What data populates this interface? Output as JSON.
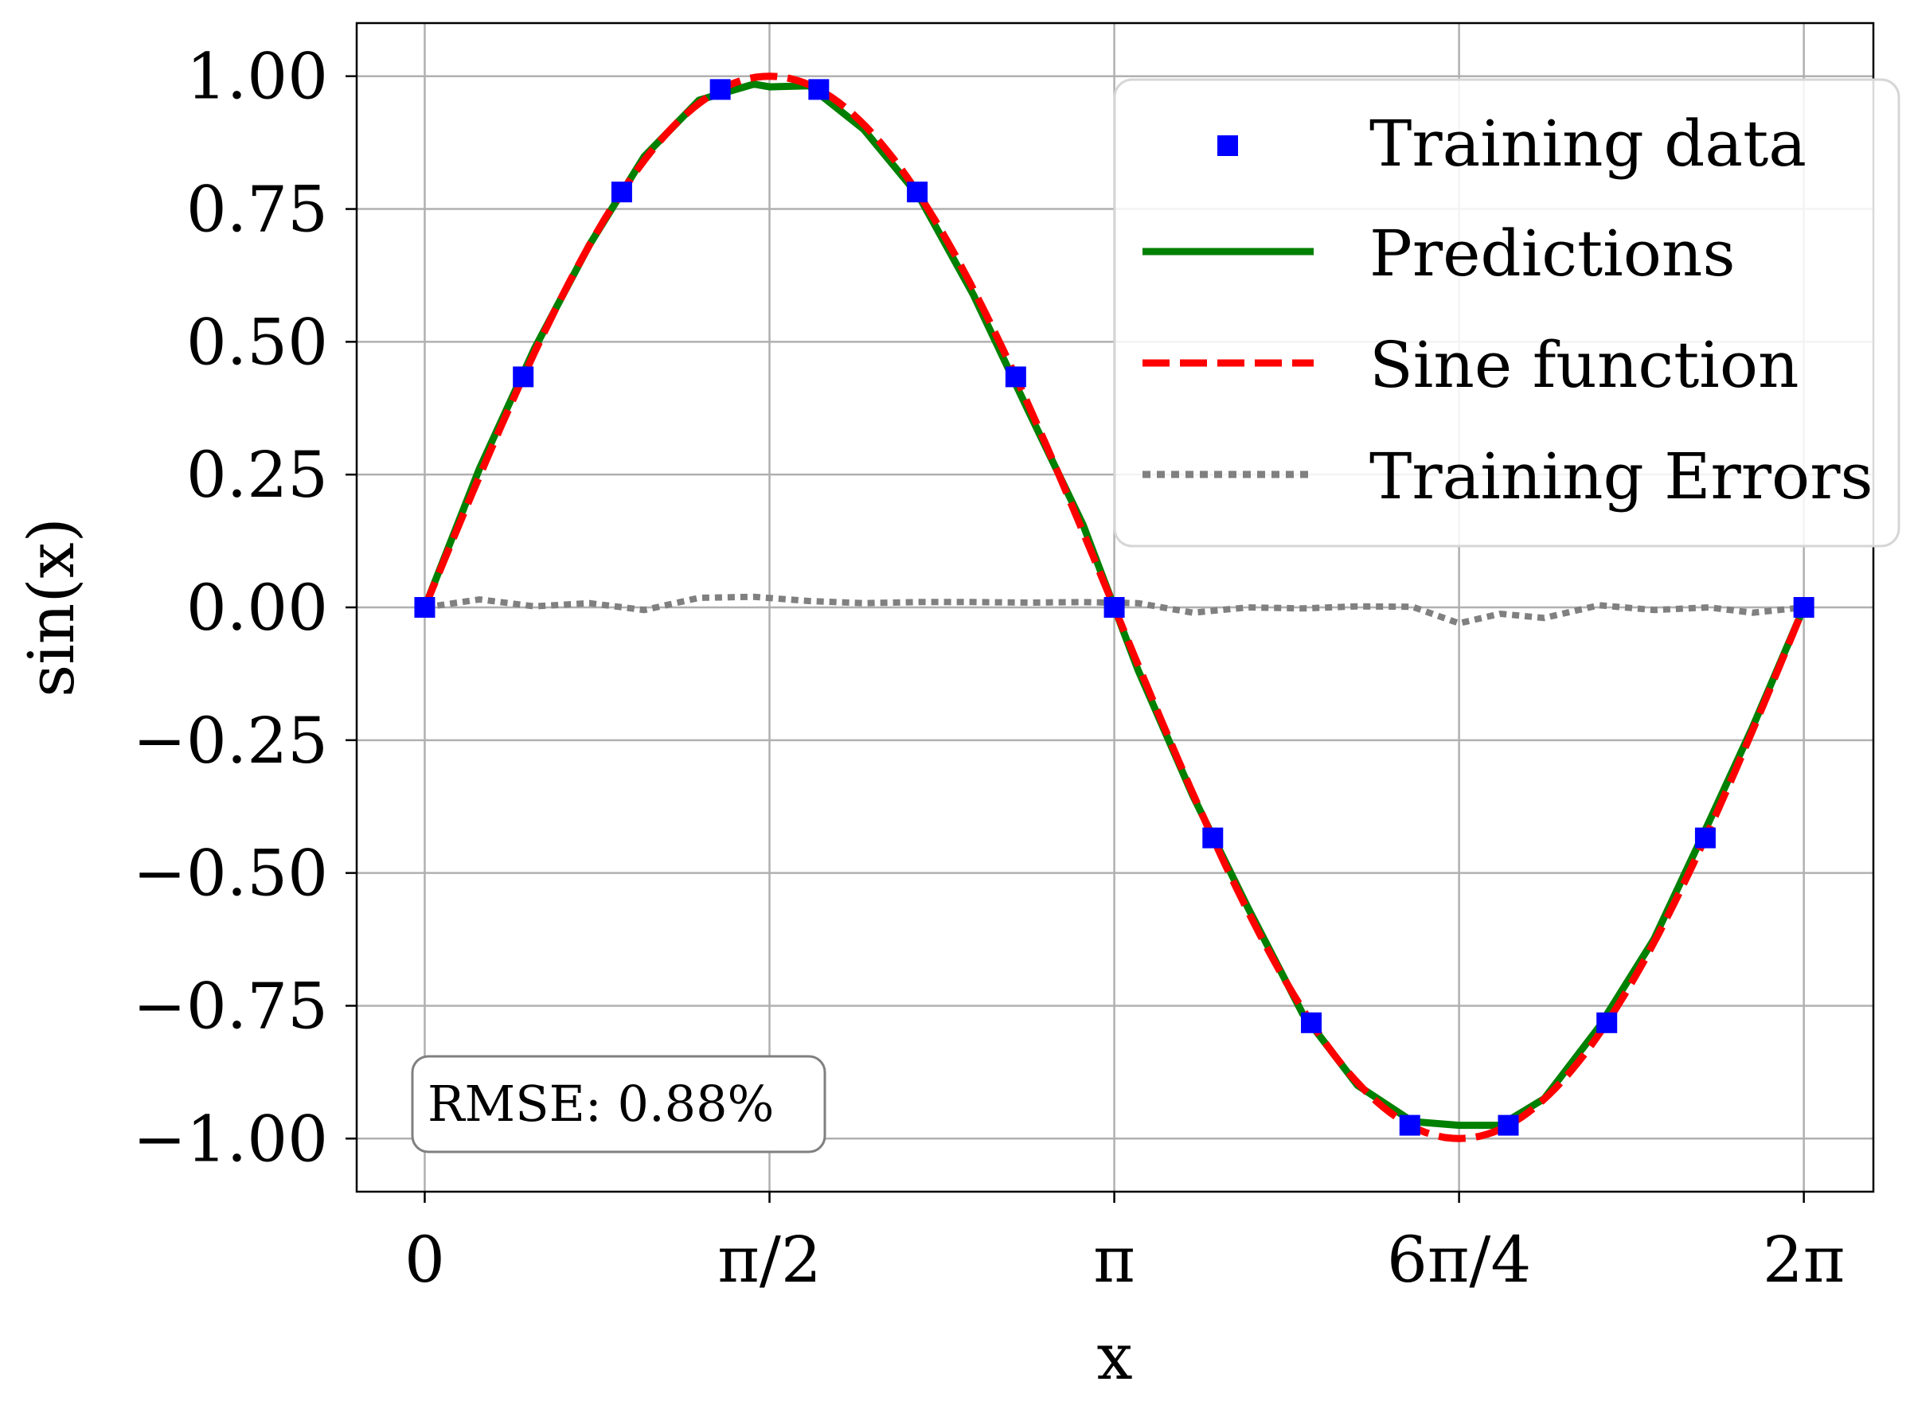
{
  "chart_data": {
    "type": "line",
    "title": "",
    "xlabel": "x",
    "ylabel": "sin(x)",
    "xlim": [
      -0.31,
      6.6
    ],
    "ylim": [
      -1.1,
      1.1
    ],
    "grid": true,
    "legend_position": "top-right",
    "x_ticks": [
      {
        "value": 0,
        "label": "0"
      },
      {
        "value": 1.5708,
        "label": "π/2"
      },
      {
        "value": 3.1416,
        "label": "π"
      },
      {
        "value": 4.7124,
        "label": "6π/4"
      },
      {
        "value": 6.2832,
        "label": "2π"
      }
    ],
    "y_ticks": [
      {
        "value": 1.0,
        "label": "1.00"
      },
      {
        "value": 0.75,
        "label": "0.75"
      },
      {
        "value": 0.5,
        "label": "0.50"
      },
      {
        "value": 0.25,
        "label": "0.25"
      },
      {
        "value": 0.0,
        "label": "0.00"
      },
      {
        "value": -0.25,
        "label": "−0.25"
      },
      {
        "value": -0.5,
        "label": "−0.50"
      },
      {
        "value": -0.75,
        "label": "−0.75"
      },
      {
        "value": -1.0,
        "label": "−1.00"
      }
    ],
    "series": [
      {
        "name": "Training data",
        "kind": "scatter",
        "color": "#0000ff",
        "x": [
          0.0,
          0.4488,
          0.8976,
          1.3464,
          1.7952,
          2.244,
          2.6928,
          3.1416,
          3.5904,
          4.0392,
          4.488,
          4.9368,
          5.3856,
          5.8344,
          6.2832
        ],
        "y": [
          0.0,
          0.434,
          0.782,
          0.975,
          0.975,
          0.782,
          0.434,
          0.0,
          -0.434,
          -0.782,
          -0.975,
          -0.975,
          -0.782,
          -0.434,
          0.0
        ]
      },
      {
        "name": "Predictions",
        "kind": "line",
        "color": "#008000",
        "x": [
          0.0,
          0.25,
          0.5,
          0.75,
          1.0,
          1.25,
          1.5,
          1.5708,
          1.75,
          2.0,
          2.25,
          2.5,
          2.75,
          3.0,
          3.1416,
          3.25,
          3.5,
          3.75,
          4.0,
          4.25,
          4.5,
          4.7124,
          4.9,
          5.1,
          5.35,
          5.6,
          5.85,
          6.05,
          6.2832
        ],
        "y": [
          0.0,
          0.262,
          0.487,
          0.682,
          0.849,
          0.955,
          0.985,
          0.98,
          0.982,
          0.9,
          0.775,
          0.588,
          0.37,
          0.155,
          0.0,
          -0.118,
          -0.355,
          -0.565,
          -0.765,
          -0.9,
          -0.968,
          -0.975,
          -0.975,
          -0.925,
          -0.79,
          -0.625,
          -0.405,
          -0.225,
          0.0
        ]
      },
      {
        "name": "Sine function",
        "kind": "dashed-line",
        "color": "#ff0000",
        "function": "sin(x)",
        "x_range": [
          0,
          6.2832
        ]
      },
      {
        "name": "Training Errors",
        "kind": "dotted-line",
        "color": "#808080",
        "x": [
          0.0,
          0.25,
          0.5,
          0.75,
          1.0,
          1.25,
          1.5,
          1.75,
          2.0,
          2.25,
          2.5,
          2.75,
          3.0,
          3.25,
          3.5,
          3.75,
          4.0,
          4.25,
          4.5,
          4.7124,
          4.9,
          5.1,
          5.35,
          5.6,
          5.85,
          6.05,
          6.2832
        ],
        "y": [
          0.0,
          0.015,
          0.002,
          0.008,
          -0.005,
          0.018,
          0.02,
          0.012,
          0.008,
          0.01,
          0.01,
          0.009,
          0.01,
          0.008,
          -0.01,
          0.0,
          -0.002,
          0.002,
          0.001,
          -0.03,
          -0.012,
          -0.02,
          0.004,
          -0.005,
          0.0,
          -0.01,
          0.0
        ]
      }
    ],
    "annotation": "RMSE: 0.88%"
  }
}
